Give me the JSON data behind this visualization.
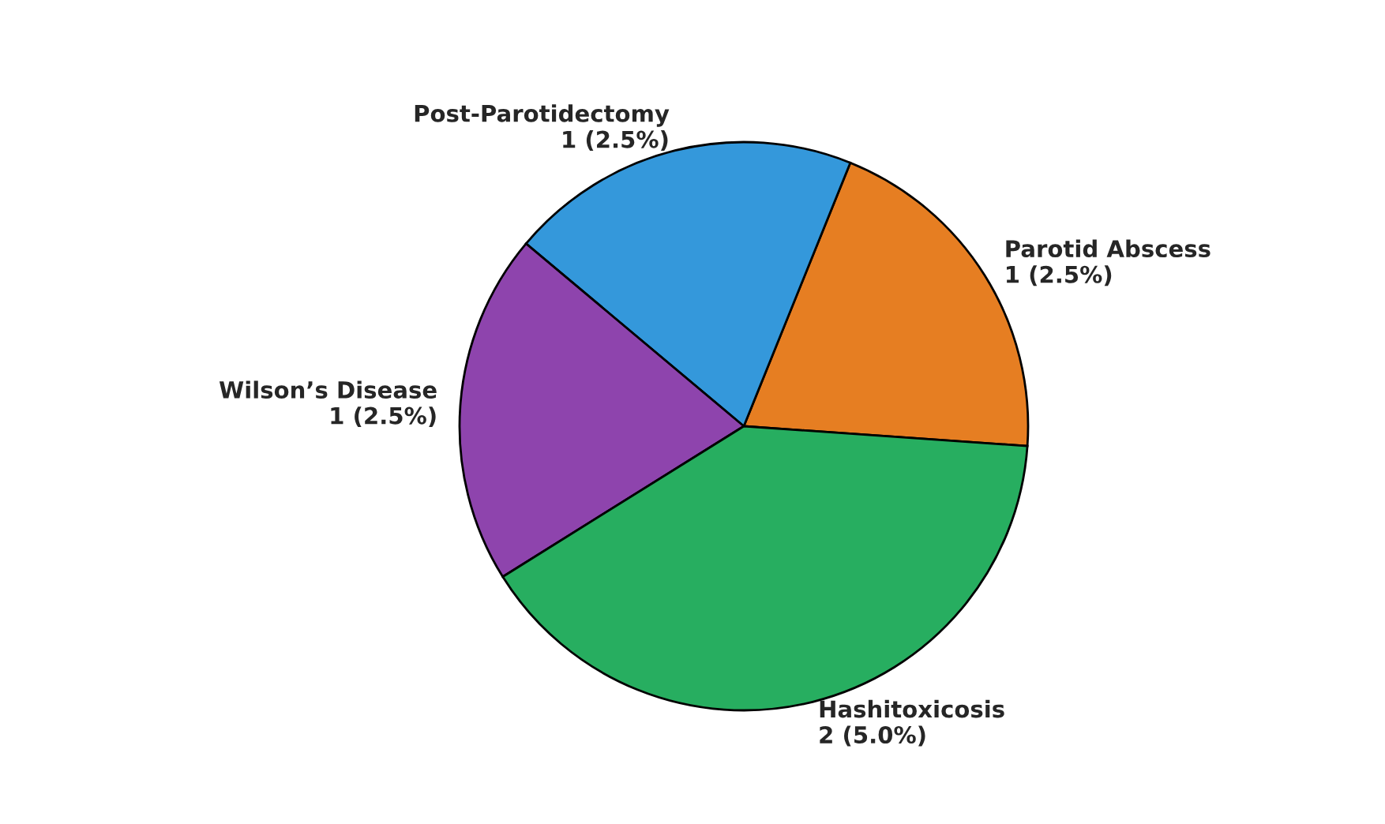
{
  "chart_data": {
    "type": "pie",
    "categories": [
      "Parotid Abscess",
      "Post-Parotidectomy",
      "Wilson’s Disease",
      "Hashitoxicosis"
    ],
    "values": [
      1,
      1,
      1,
      2
    ],
    "value_labels": [
      "1 (2.5%)",
      "1 (2.5%)",
      "1 (2.5%)",
      "2 (5.0%)"
    ],
    "colors": [
      "#e67e22",
      "#3498db",
      "#8e44ad",
      "#27ae60"
    ],
    "legend": false
  }
}
